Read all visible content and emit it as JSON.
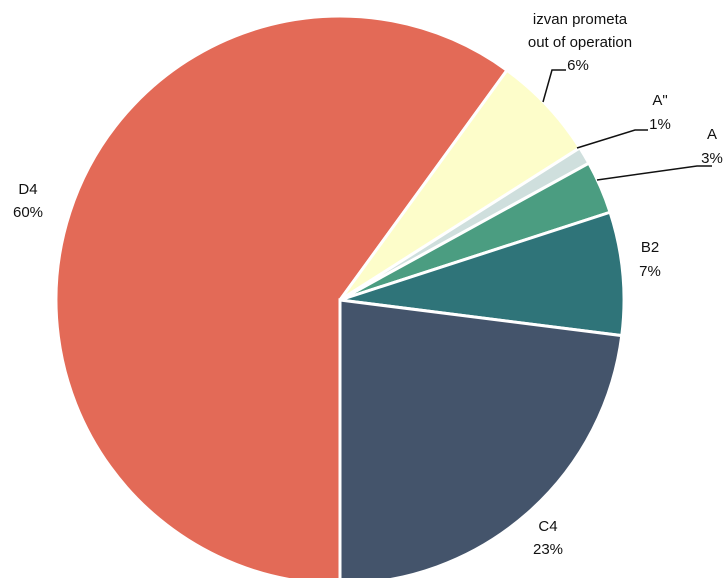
{
  "chart_data": {
    "type": "pie",
    "categories": [
      "D4",
      "izvan prometa\nout of operation",
      "A\"",
      "A",
      "B2",
      "C4"
    ],
    "values": [
      60,
      6,
      1,
      3,
      7,
      23
    ],
    "value_labels": [
      "60%",
      "6%",
      "1%",
      "3%",
      "7%",
      "23%"
    ],
    "colors": [
      "#e36a57",
      "#fdfdca",
      "#cfdfdd",
      "#4b9d81",
      "#2f7479",
      "#44546b"
    ]
  }
}
